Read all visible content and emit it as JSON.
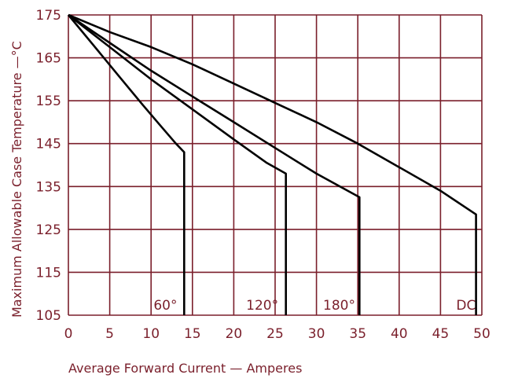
{
  "chart_data": {
    "type": "line",
    "title": "",
    "xlabel": "Average Forward Current — Amperes",
    "ylabel": "Maximum Allowable Case Temperature —°C",
    "xlim": [
      0,
      50
    ],
    "ylim": [
      105,
      175
    ],
    "xticks": [
      0,
      5,
      10,
      15,
      20,
      25,
      30,
      35,
      40,
      45,
      50
    ],
    "yticks": [
      105,
      115,
      125,
      135,
      145,
      155,
      165,
      175
    ],
    "grid": true,
    "colors": {
      "grid": "#7a1f2b",
      "text": "#7a1f2b",
      "line": "#000000"
    },
    "series": [
      {
        "name": "60°",
        "label_x": 10.3,
        "points": [
          [
            0,
            175
          ],
          [
            3,
            168
          ],
          [
            6,
            161
          ],
          [
            9,
            154
          ],
          [
            11,
            149.5
          ],
          [
            13,
            145
          ],
          [
            14,
            143
          ],
          [
            14,
            105
          ]
        ]
      },
      {
        "name": "120°",
        "label_x": 21.5,
        "points": [
          [
            0,
            175
          ],
          [
            5,
            167.5
          ],
          [
            10,
            160
          ],
          [
            15,
            153
          ],
          [
            20,
            146
          ],
          [
            24,
            140.5
          ],
          [
            26.3,
            138
          ],
          [
            26.3,
            105
          ]
        ]
      },
      {
        "name": "180°",
        "label_x": 30.8,
        "points": [
          [
            0,
            175
          ],
          [
            5,
            168.5
          ],
          [
            10,
            162
          ],
          [
            15,
            156
          ],
          [
            20,
            150
          ],
          [
            25,
            144
          ],
          [
            30,
            138
          ],
          [
            35.2,
            132.5
          ],
          [
            35.2,
            105
          ]
        ]
      },
      {
        "name": "DC",
        "label_x": 46.9,
        "points": [
          [
            0,
            175
          ],
          [
            5,
            171
          ],
          [
            10,
            167.5
          ],
          [
            15,
            163.5
          ],
          [
            20,
            159
          ],
          [
            25,
            154.5
          ],
          [
            30,
            150
          ],
          [
            35,
            145
          ],
          [
            40,
            139.5
          ],
          [
            45,
            134
          ],
          [
            49.3,
            128.5
          ],
          [
            49.3,
            105
          ]
        ]
      }
    ]
  }
}
